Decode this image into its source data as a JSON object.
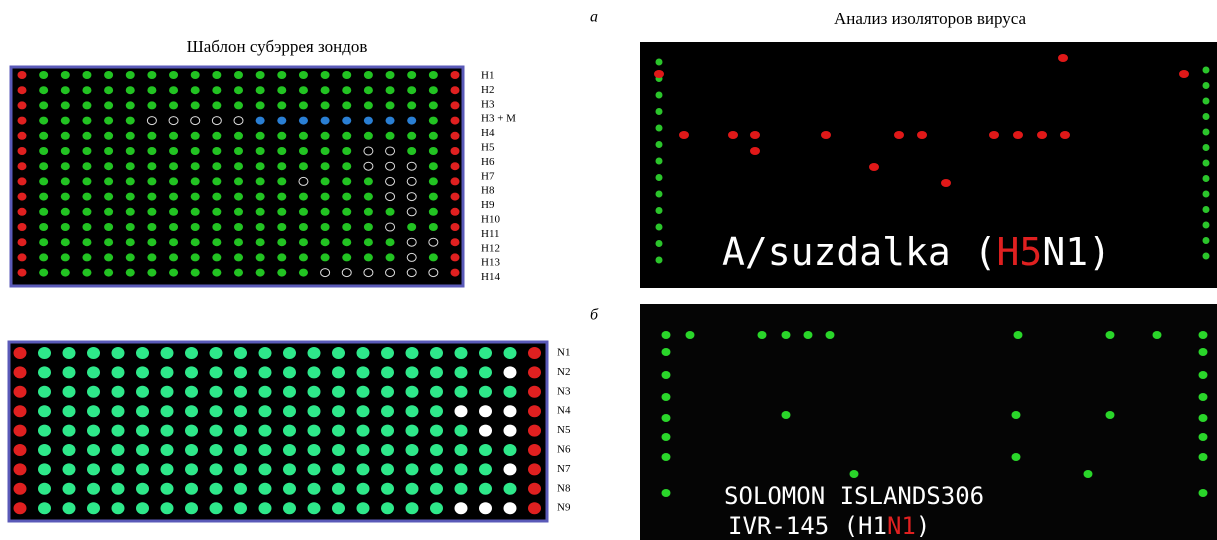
{
  "panels": {
    "a": {
      "letter": "а",
      "template_title": "Шаблон субэррея зондов",
      "analysis_title": "Анализ изоляторов вируса",
      "row_labels": [
        "H1",
        "H2",
        "H3",
        "H3 + M",
        "H4",
        "H5",
        "H6",
        "H7",
        "H8",
        "H9",
        "H10",
        "H11",
        "H12",
        "H13",
        "H14"
      ],
      "isolate_label": [
        "A/suzdalka (",
        "H5",
        "N1)"
      ]
    },
    "b": {
      "letter": "б",
      "row_labels": [
        "N1",
        "N2",
        "N3",
        "N4",
        "N5",
        "N6",
        "N7",
        "N8",
        "N9"
      ],
      "isolate_label_line1": "SOLOMON ISLANDS306",
      "isolate_label_line2": [
        "IVR-145 (H1",
        "N1",
        ")"
      ]
    }
  }
}
